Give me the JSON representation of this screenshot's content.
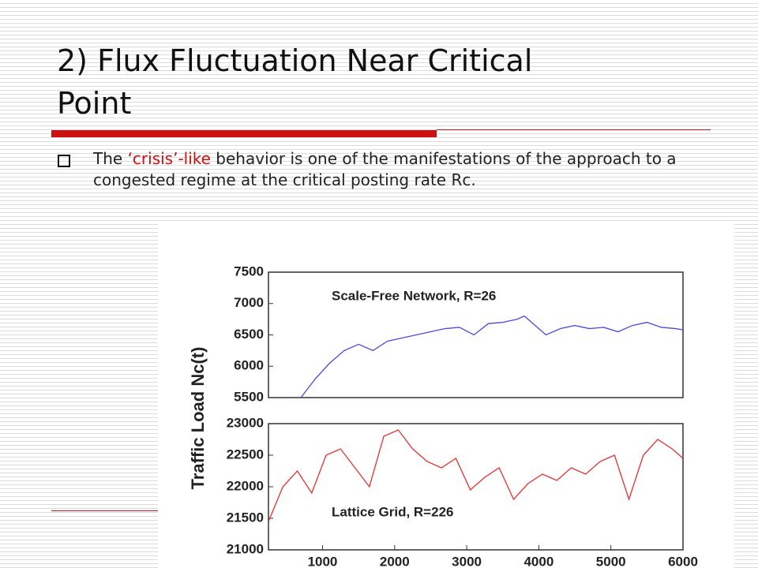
{
  "slide": {
    "title_lines": [
      "2) Flux Fluctuation Near Critical",
      "Point"
    ],
    "bullet": [
      "The ",
      "‘crisis’-like",
      " behavior is one of the manifestations of the approach to a congested regime at the critical posting rate Rc."
    ]
  },
  "chart_data": [
    {
      "type": "line",
      "y_label": "Traffic Load  Nc(t)",
      "annotation": "Scale-Free Network, R=26",
      "x": [
        700,
        900,
        1100,
        1300,
        1500,
        1700,
        1900,
        2100,
        2300,
        2500,
        2700,
        2900,
        3100,
        3300,
        3500,
        3700,
        3800,
        3900,
        4100,
        4300,
        4500,
        4700,
        4900,
        5100,
        5300,
        5500,
        5700,
        5900,
        6000
      ],
      "series": [
        {
          "color": "#4a4ae0",
          "values": [
            5500,
            5800,
            6050,
            6250,
            6350,
            6250,
            6400,
            6450,
            6500,
            6550,
            6600,
            6620,
            6500,
            6680,
            6700,
            6750,
            6800,
            6700,
            6500,
            6600,
            6650,
            6600,
            6620,
            6550,
            6650,
            6700,
            6620,
            6600,
            6580
          ]
        }
      ],
      "xlim": [
        250,
        6000
      ],
      "ylim": [
        5500,
        7500
      ],
      "yticks": [
        5500,
        6000,
        6500,
        7000,
        7500
      ]
    },
    {
      "type": "line",
      "annotation": "Lattice Grid, R=226",
      "x": [
        250,
        450,
        650,
        850,
        1050,
        1250,
        1450,
        1650,
        1850,
        2050,
        2250,
        2450,
        2650,
        2850,
        3050,
        3250,
        3450,
        3650,
        3850,
        4050,
        4250,
        4450,
        4650,
        4850,
        5050,
        5250,
        5450,
        5650,
        5850,
        6000
      ],
      "series": [
        {
          "color": "#e83030",
          "values": [
            21450,
            22000,
            22250,
            21900,
            22500,
            22600,
            22300,
            22000,
            22800,
            22900,
            22600,
            22400,
            22300,
            22450,
            21950,
            22150,
            22300,
            21800,
            22050,
            22200,
            22100,
            22300,
            22200,
            22400,
            22500,
            21800,
            22500,
            22750,
            22600,
            22450
          ]
        }
      ],
      "xlim": [
        250,
        6000
      ],
      "ylim": [
        21000,
        23000
      ],
      "yticks": [
        21000,
        21500,
        22000,
        22500,
        23000
      ],
      "xticks": [
        1000,
        2000,
        3000,
        4000,
        5000,
        6000
      ]
    }
  ]
}
